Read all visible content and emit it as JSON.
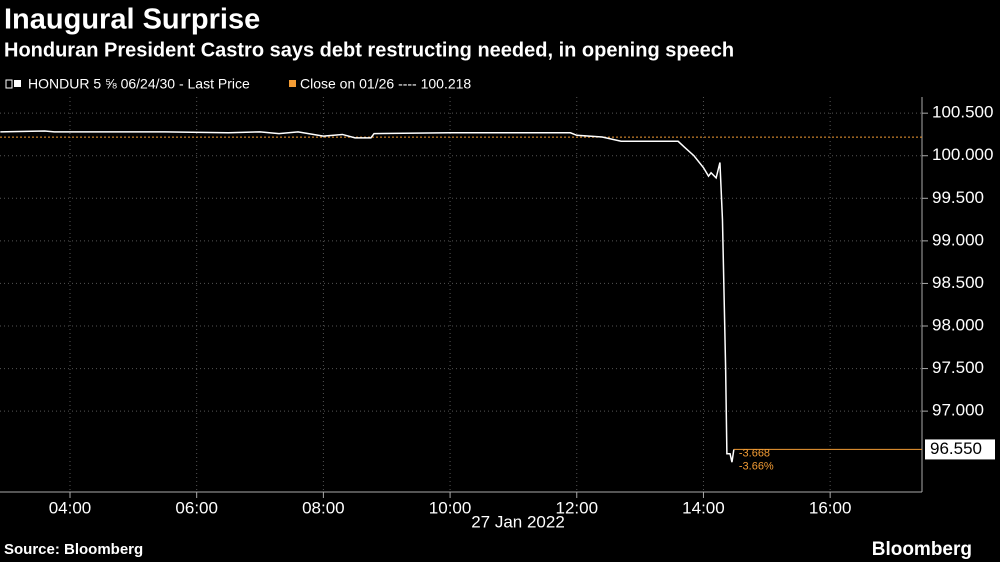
{
  "chart_data": {
    "type": "line",
    "title": "Inaugural Surprise",
    "subtitle": "Honduran President Castro says debt restructing needed, in opening speech",
    "x_label": "27 Jan 2022",
    "source": "Source: Bloomberg",
    "logo": "Bloomberg",
    "x": [
      2.9,
      3.6,
      3.75,
      5.0,
      5.5,
      6.5,
      7.0,
      7.3,
      7.6,
      8.0,
      8.3,
      8.5,
      8.75,
      8.8,
      10.0,
      11.0,
      11.9,
      12.0,
      12.4,
      12.7,
      13.6,
      13.7,
      13.85,
      14.0,
      14.08,
      14.12,
      14.2,
      14.26,
      14.3,
      14.35,
      14.37,
      14.42,
      14.45,
      14.48
    ],
    "series": [
      {
        "name": "HONDUR 5 ⅝ 06/24/30 - Last Price",
        "color": "#ffffff",
        "values": [
          100.28,
          100.29,
          100.28,
          100.28,
          100.28,
          100.27,
          100.28,
          100.26,
          100.28,
          100.23,
          100.25,
          100.21,
          100.21,
          100.26,
          100.27,
          100.27,
          100.27,
          100.24,
          100.22,
          100.17,
          100.17,
          100.1,
          100.0,
          99.86,
          99.76,
          99.8,
          99.74,
          99.92,
          99.25,
          97.5,
          96.5,
          96.5,
          96.4,
          96.55
        ]
      }
    ],
    "reference_line": {
      "name": "Close on 01/26 ---- 100.218",
      "color": "#f39c34",
      "value": 100.218
    },
    "last_price": {
      "value": 96.55,
      "label": "96.550"
    },
    "annotations": [
      "-3.668",
      "-3.66%"
    ],
    "xlim": [
      2.895,
      17.45
    ],
    "xticks": [
      {
        "value": 4,
        "label": "04:00"
      },
      {
        "value": 6,
        "label": "06:00"
      },
      {
        "value": 8,
        "label": "08:00"
      },
      {
        "value": 10,
        "label": "10:00"
      },
      {
        "value": 12,
        "label": "12:00"
      },
      {
        "value": 14,
        "label": "14:00"
      },
      {
        "value": 16,
        "label": "16:00"
      }
    ],
    "ylim": [
      96.05,
      100.69
    ],
    "yticks": [
      {
        "value": 97,
        "label": "97.000"
      },
      {
        "value": 97.5,
        "label": "97.500"
      },
      {
        "value": 98,
        "label": "98.000"
      },
      {
        "value": 98.5,
        "label": "98.500"
      },
      {
        "value": 99,
        "label": "99.000"
      },
      {
        "value": 99.5,
        "label": "99.500"
      },
      {
        "value": 100,
        "label": "100.000"
      },
      {
        "value": 100.5,
        "label": "100.500"
      }
    ],
    "grid": true
  }
}
